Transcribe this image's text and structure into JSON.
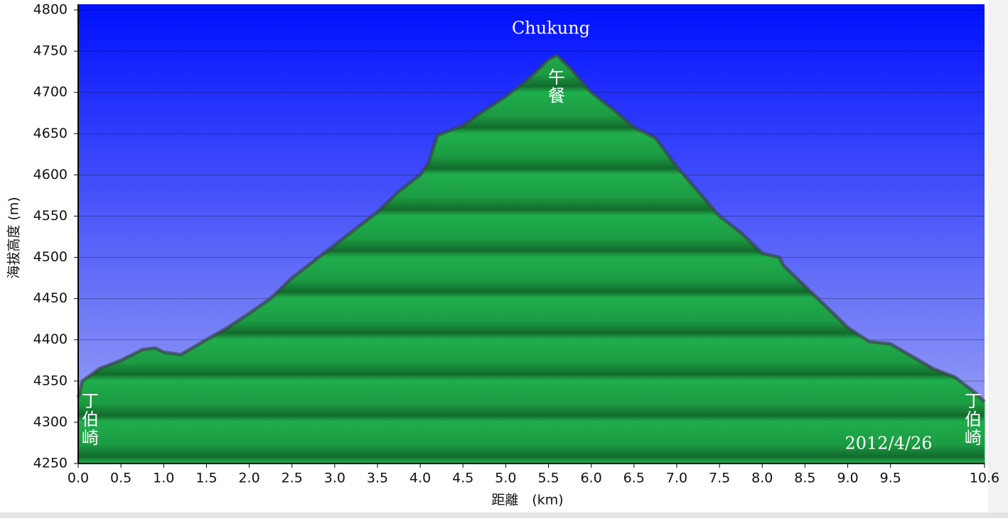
{
  "chart_data": {
    "type": "area",
    "y_label": "海拔高度 (m)",
    "x_label": "距離　(km)",
    "annotations": [
      "Chukung",
      "午餐",
      "丁伯崎",
      "丁伯崎",
      "2012/4/26"
    ],
    "x": [
      0,
      0.05,
      0.25,
      0.5,
      0.75,
      0.9,
      1.0,
      1.2,
      1.5,
      1.75,
      2.0,
      2.25,
      2.5,
      2.75,
      3.0,
      3.25,
      3.5,
      3.75,
      4.0,
      4.1,
      4.2,
      4.5,
      4.75,
      5.0,
      5.25,
      5.5,
      5.6,
      5.75,
      6.0,
      6.25,
      6.5,
      6.75,
      7.0,
      7.25,
      7.5,
      7.75,
      8.0,
      8.2,
      8.25,
      8.5,
      8.75,
      9.0,
      9.25,
      9.5,
      9.75,
      10.0,
      10.25,
      10.5,
      10.6
    ],
    "series": [
      {
        "color": "#1ea447",
        "values": [
          4330,
          4350,
          4365,
          4375,
          4388,
          4390,
          4385,
          4382,
          4400,
          4415,
          4432,
          4450,
          4475,
          4495,
          4515,
          4535,
          4555,
          4580,
          4600,
          4615,
          4648,
          4660,
          4678,
          4695,
          4715,
          4740,
          4745,
          4730,
          4700,
          4680,
          4658,
          4645,
          4610,
          4580,
          4550,
          4530,
          4505,
          4500,
          4490,
          4465,
          4440,
          4415,
          4398,
          4395,
          4380,
          4365,
          4355,
          4335,
          4325
        ]
      }
    ],
    "xlim": [
      0,
      10.6
    ],
    "xticks": [
      {
        "value": 0,
        "label": "0.0"
      },
      0.5,
      {
        "value": 1,
        "label": "1.0"
      },
      1.5,
      {
        "value": 2,
        "label": "2.0"
      },
      2.5,
      {
        "value": 3,
        "label": "3.0"
      },
      3.5,
      {
        "value": 4,
        "label": "4.0"
      },
      4.5,
      {
        "value": 5,
        "label": "5.0"
      },
      5.5,
      {
        "value": 6,
        "label": "6.0"
      },
      6.5,
      {
        "value": 7,
        "label": "7.0"
      },
      7.5,
      {
        "value": 8,
        "label": "8.0"
      },
      8.5,
      {
        "value": 9,
        "label": "9.0"
      },
      9.5,
      10.6
    ],
    "ylim": [
      4250,
      4800
    ],
    "yticks": [
      4250,
      4300,
      4350,
      4400,
      4450,
      4500,
      4550,
      4600,
      4650,
      4700,
      4750,
      4800
    ],
    "grid": true
  }
}
